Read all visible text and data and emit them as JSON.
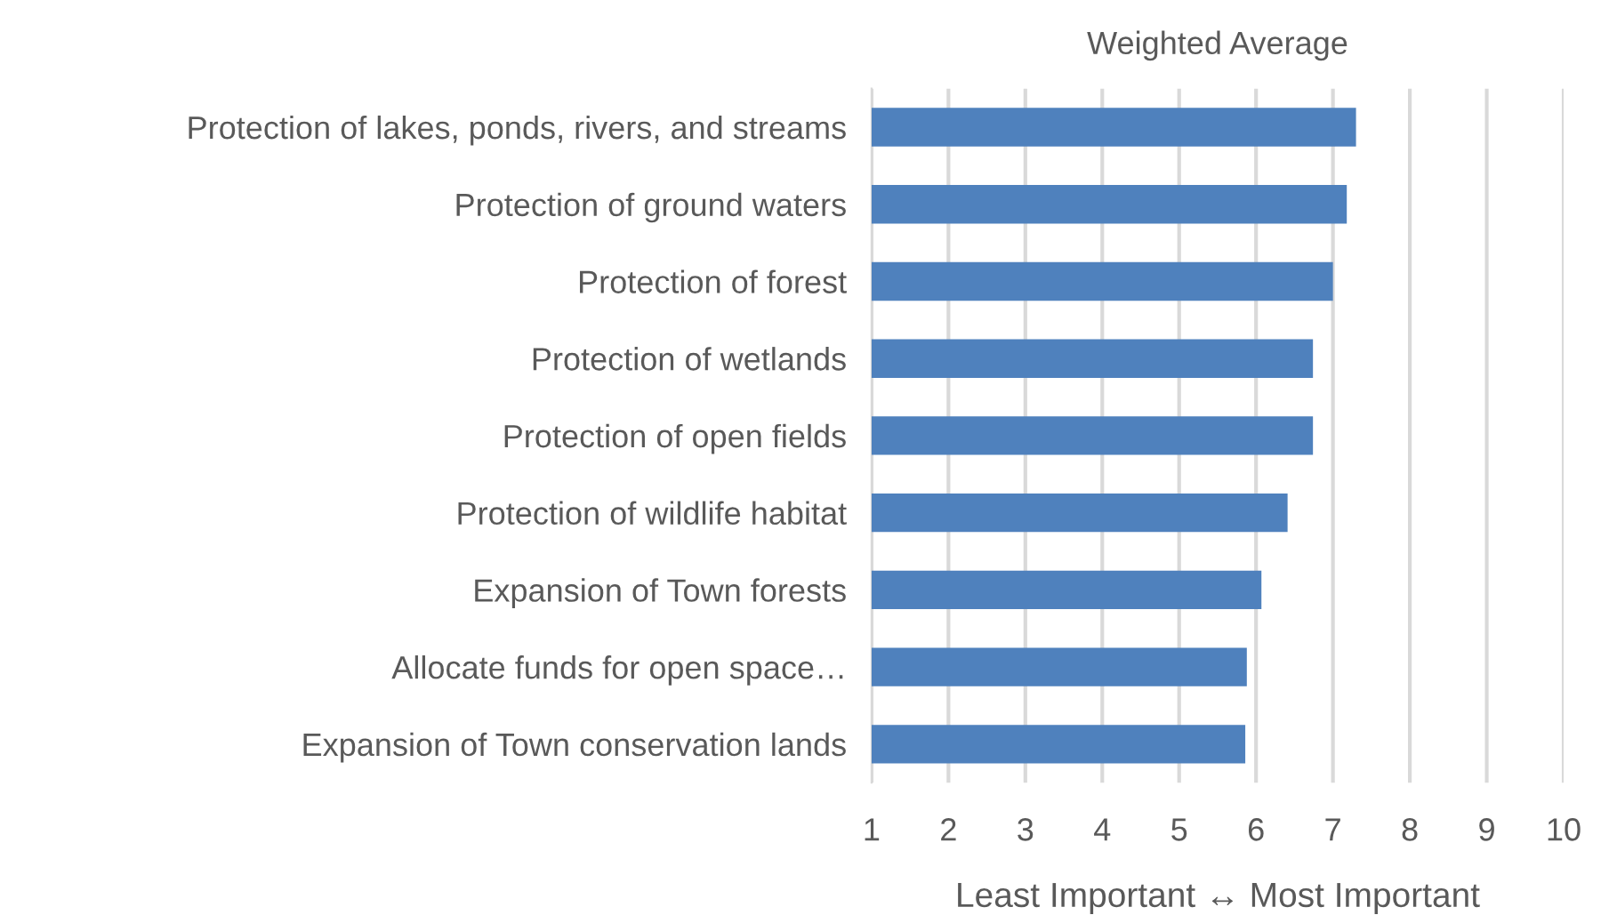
{
  "chart_data": {
    "type": "bar",
    "orientation": "horizontal",
    "title": "Weighted Average",
    "xlabel": "Least Important ↔ Most Important",
    "categories": [
      "Protection of lakes, ponds, rivers, and streams",
      "Protection of ground waters",
      "Protection of forest",
      "Protection of wetlands",
      "Protection of open fields",
      "Protection of wildlife habitat",
      "Expansion of Town forests",
      "Allocate funds for open space…",
      "Expansion of Town conservation lands"
    ],
    "values": [
      7.3,
      7.18,
      7.0,
      6.74,
      6.74,
      6.41,
      6.07,
      5.88,
      5.86
    ],
    "color": "#4f81bd",
    "xlim": [
      1,
      10
    ],
    "xticks": [
      1,
      2,
      3,
      4,
      5,
      6,
      7,
      8,
      9,
      10
    ],
    "grid": "x",
    "legend": false
  }
}
